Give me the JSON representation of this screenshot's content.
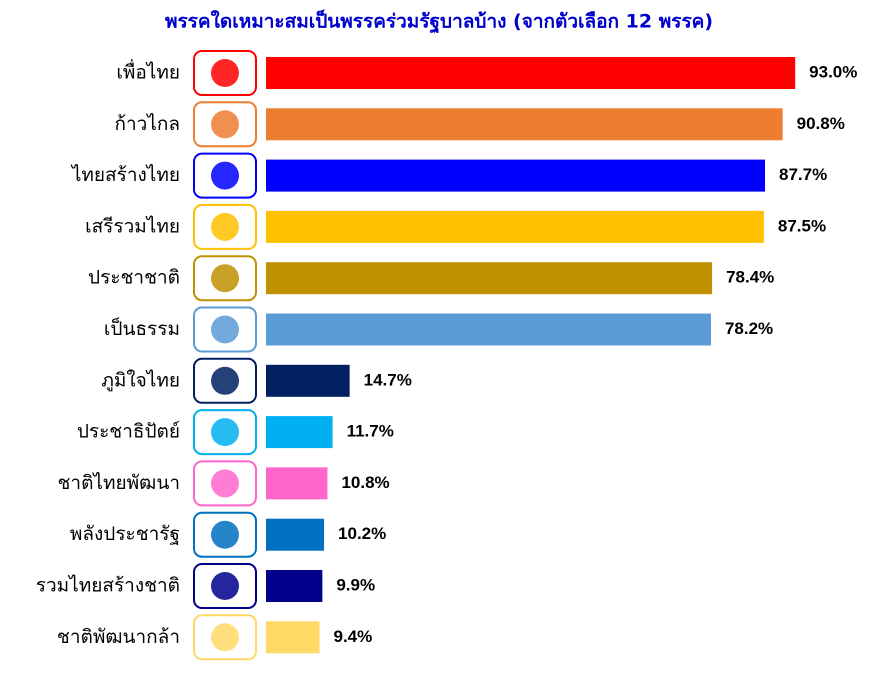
{
  "chart_data": {
    "type": "bar",
    "orientation": "horizontal",
    "title": "พรรคใดเหมาะสมเป็นพรรคร่วมรัฐบาลบ้าง (จากตัวเลือก 12 พรรค)",
    "categories": [
      "เพื่อไทย",
      "ก้าวไกล",
      "ไทยสร้างไทย",
      "เสรีรวมไทย",
      "ประชาชาติ",
      "เป็นธรรม",
      "ภูมิใจไทย",
      "ประชาธิปัตย์",
      "ชาติไทยพัฒนา",
      "พลังประชารัฐ",
      "รวมไทยสร้างชาติ",
      "ชาติพัฒนากล้า"
    ],
    "values": [
      93.0,
      90.8,
      87.7,
      87.5,
      78.4,
      78.2,
      14.7,
      11.7,
      10.8,
      10.2,
      9.9,
      9.4
    ],
    "value_labels": [
      "93.0%",
      "90.8%",
      "87.7%",
      "87.5%",
      "78.4%",
      "78.2%",
      "14.7%",
      "11.7%",
      "10.8%",
      "10.2%",
      "9.9%",
      "9.4%"
    ],
    "colors": [
      "#ff0000",
      "#ed7d31",
      "#0000ff",
      "#ffc000",
      "#bf9000",
      "#5b9bd5",
      "#002060",
      "#00b0f0",
      "#ff66cc",
      "#0070c0",
      "#00008b",
      "#ffd966"
    ]
  }
}
